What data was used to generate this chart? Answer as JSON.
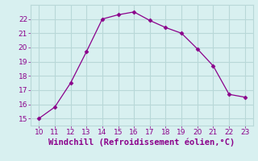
{
  "x": [
    10,
    11,
    12,
    13,
    14,
    15,
    16,
    17,
    18,
    19,
    20,
    21,
    22,
    23
  ],
  "y": [
    15.0,
    15.8,
    17.5,
    19.7,
    22.0,
    22.3,
    22.5,
    21.9,
    21.4,
    21.0,
    19.9,
    18.7,
    16.7,
    16.5
  ],
  "line_color": "#8B008B",
  "marker": "D",
  "marker_size": 2.5,
  "bg_color": "#d8f0f0",
  "grid_color": "#b8d8d8",
  "xlabel": "Windchill (Refroidissement éolien,°C)",
  "xlabel_color": "#8B008B",
  "xlabel_fontsize": 7.5,
  "tick_color": "#8B008B",
  "tick_fontsize": 6.5,
  "xlim": [
    9.5,
    23.5
  ],
  "ylim": [
    14.5,
    23.0
  ],
  "xticks": [
    10,
    11,
    12,
    13,
    14,
    15,
    16,
    17,
    18,
    19,
    20,
    21,
    22,
    23
  ],
  "yticks": [
    15,
    16,
    17,
    18,
    19,
    20,
    21,
    22
  ]
}
